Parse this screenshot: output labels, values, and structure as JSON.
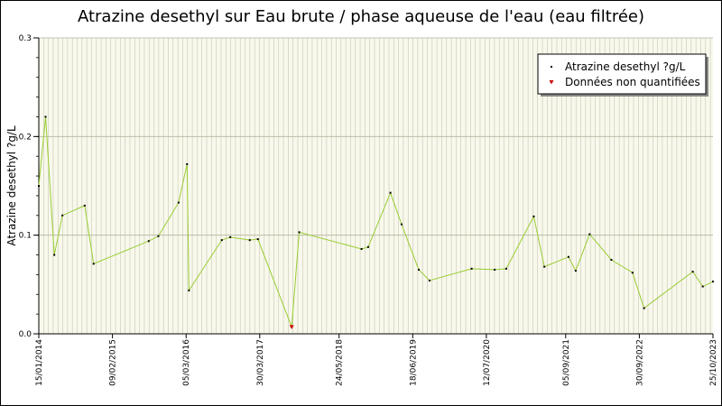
{
  "chart_data": {
    "type": "line",
    "title": "Atrazine desethyl sur Eau brute / phase aqueuse de l'eau (eau filtrée)",
    "ylabel": "Atrazine desethyl ?g/L",
    "ylim": [
      0,
      0.3
    ],
    "yticks": [
      "0.0",
      "0.1",
      "0.2",
      "0.3"
    ],
    "xlim": [
      "2014-01-15",
      "2023-10-25"
    ],
    "xticks": [
      {
        "date": "2014-01-15",
        "label": "15/01/2014"
      },
      {
        "date": "2015-02-09",
        "label": "09/02/2015"
      },
      {
        "date": "2016-03-05",
        "label": "05/03/2016"
      },
      {
        "date": "2017-03-30",
        "label": "30/03/2017"
      },
      {
        "date": "2018-05-24",
        "label": "24/05/2018"
      },
      {
        "date": "2019-06-18",
        "label": "18/06/2019"
      },
      {
        "date": "2020-07-12",
        "label": "12/07/2020"
      },
      {
        "date": "2021-09-05",
        "label": "05/09/2021"
      },
      {
        "date": "2022-09-30",
        "label": "30/09/2022"
      },
      {
        "date": "2023-10-25",
        "label": "25/10/2023"
      }
    ],
    "grid": true,
    "legend_position": "top-right",
    "colors": {
      "line": "#9acd32",
      "marker": "#000000",
      "non_quantified": "#cc0000",
      "grid": "#c8c8b4",
      "plot_bg": "#f8f8ec"
    },
    "series": [
      {
        "name": "Atrazine desethyl ?g/L",
        "points": [
          {
            "x": "2014-01-15",
            "y": 0.15
          },
          {
            "x": "2014-02-20",
            "y": 0.22
          },
          {
            "x": "2014-04-07",
            "y": 0.08
          },
          {
            "x": "2014-05-20",
            "y": 0.12
          },
          {
            "x": "2014-09-15",
            "y": 0.13
          },
          {
            "x": "2014-11-01",
            "y": 0.071
          },
          {
            "x": "2015-08-20",
            "y": 0.094
          },
          {
            "x": "2015-10-10",
            "y": 0.099
          },
          {
            "x": "2016-01-25",
            "y": 0.133
          },
          {
            "x": "2016-03-10",
            "y": 0.172
          },
          {
            "x": "2016-03-20",
            "y": 0.044
          },
          {
            "x": "2016-09-10",
            "y": 0.095
          },
          {
            "x": "2016-10-25",
            "y": 0.098
          },
          {
            "x": "2017-02-05",
            "y": 0.095
          },
          {
            "x": "2017-03-20",
            "y": 0.096
          },
          {
            "x": "2017-09-15",
            "y": 0.007,
            "non_quantified": true
          },
          {
            "x": "2017-10-25",
            "y": 0.103
          },
          {
            "x": "2018-09-20",
            "y": 0.086
          },
          {
            "x": "2018-10-25",
            "y": 0.088
          },
          {
            "x": "2019-02-20",
            "y": 0.143
          },
          {
            "x": "2019-04-20",
            "y": 0.111
          },
          {
            "x": "2019-07-20",
            "y": 0.065
          },
          {
            "x": "2019-09-15",
            "y": 0.054
          },
          {
            "x": "2020-04-25",
            "y": 0.066
          },
          {
            "x": "2020-08-25",
            "y": 0.065
          },
          {
            "x": "2020-10-25",
            "y": 0.066
          },
          {
            "x": "2021-03-20",
            "y": 0.119
          },
          {
            "x": "2021-05-15",
            "y": 0.068
          },
          {
            "x": "2021-09-20",
            "y": 0.078
          },
          {
            "x": "2021-10-28",
            "y": 0.064
          },
          {
            "x": "2022-01-10",
            "y": 0.101
          },
          {
            "x": "2022-05-05",
            "y": 0.075
          },
          {
            "x": "2022-08-25",
            "y": 0.062
          },
          {
            "x": "2022-10-25",
            "y": 0.026
          },
          {
            "x": "2023-07-10",
            "y": 0.063
          },
          {
            "x": "2023-09-01",
            "y": 0.048
          },
          {
            "x": "2023-10-25",
            "y": 0.053
          }
        ]
      }
    ],
    "legend": [
      {
        "label": "Atrazine desethyl ?g/L",
        "marker_color": "#000000"
      },
      {
        "label": "Données non quantifiées",
        "marker_color": "#cc0000"
      }
    ]
  }
}
